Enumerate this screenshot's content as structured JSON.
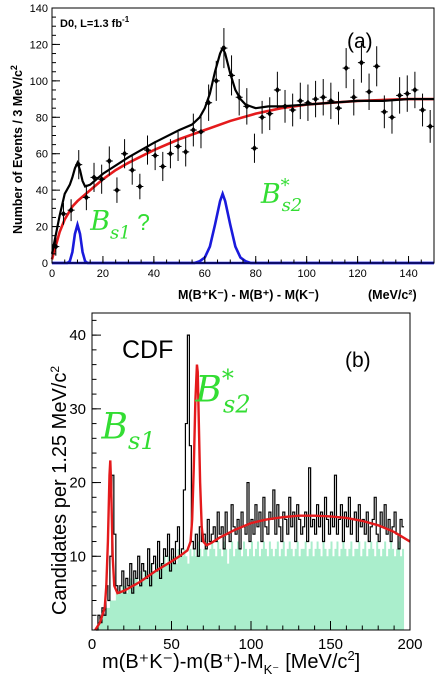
{
  "chart_data": [
    {
      "id": "a",
      "type": "scatter",
      "panel_label": "(a)",
      "note": "D0, L=1.3 fb",
      "note_sup": "-1",
      "ylabel": "Number of Events / 3 MeV/c",
      "ylabel_sup": "2",
      "xlabel": "M(B⁺K⁻) - M(B⁺) - M(K⁻)",
      "xunit": "(MeV/c²)",
      "xlim": [
        0,
        150
      ],
      "ylim": [
        0,
        140
      ],
      "xticks": [
        0,
        20,
        40,
        60,
        80,
        100,
        120,
        140
      ],
      "yticks": [
        0,
        20,
        40,
        60,
        80,
        100,
        120,
        140
      ],
      "peak_labels": [
        {
          "main": "B",
          "sub": "s1",
          "extra": " ?",
          "x": 15,
          "y": 18
        },
        {
          "main": "B",
          "sup": "*",
          "sub": "s2",
          "x": 82,
          "y": 33
        }
      ],
      "series": [
        {
          "kind": "points",
          "color": "#000000",
          "x": [
            1.5,
            4.5,
            7.5,
            10.5,
            13.5,
            16.5,
            19.5,
            22.5,
            25.5,
            28.5,
            31.5,
            34.5,
            37.5,
            40.5,
            43.5,
            46.5,
            49.5,
            52.5,
            55.5,
            58.5,
            61.5,
            64.5,
            67.5,
            70.5,
            73.5,
            76.5,
            79.5,
            82.5,
            85.5,
            88.5,
            91.5,
            94.5,
            97.5,
            100.5,
            103.5,
            106.5,
            109.5,
            112.5,
            115.5,
            118.5,
            121.5,
            124.5,
            127.5,
            130.5,
            133.5,
            136.5,
            139.5,
            142.5,
            145.5,
            148.5
          ],
          "y": [
            9,
            27,
            29,
            54,
            36,
            47,
            46,
            56,
            40,
            60,
            51,
            42,
            62,
            59,
            53,
            60,
            64,
            61,
            73,
            72,
            88,
            100,
            118,
            103,
            91,
            86,
            63,
            80,
            82,
            95,
            86,
            84,
            89,
            88,
            90,
            91,
            89,
            85,
            107,
            91,
            110,
            94,
            108,
            83,
            80,
            92,
            93,
            95,
            84,
            75
          ],
          "err": [
            5,
            6,
            6,
            8,
            7,
            8,
            8,
            8,
            7,
            8,
            8,
            7,
            8,
            8,
            8,
            8,
            8,
            8,
            9,
            9,
            10,
            11,
            11,
            11,
            10,
            10,
            8,
            9,
            9,
            10,
            9,
            9,
            10,
            10,
            10,
            10,
            10,
            9,
            11,
            10,
            11,
            10,
            11,
            9,
            9,
            10,
            10,
            10,
            9,
            9
          ]
        },
        {
          "kind": "total_fit",
          "color": "#000000",
          "x": [
            0,
            3,
            5,
            7,
            8,
            9,
            10,
            11,
            12,
            13,
            15,
            20,
            30,
            40,
            50,
            55,
            58,
            60,
            62,
            64,
            66,
            67,
            68,
            70,
            72,
            74,
            76,
            78,
            80,
            85,
            90,
            100,
            110,
            120,
            130,
            140,
            150
          ],
          "y": [
            5,
            26,
            38,
            43,
            47,
            52,
            55,
            51,
            45,
            42,
            43,
            49,
            58,
            66,
            73,
            76,
            80,
            85,
            93,
            105,
            115,
            118,
            115,
            104,
            95,
            90,
            87,
            86,
            85,
            86,
            86,
            87,
            88,
            89,
            89,
            90,
            90
          ]
        },
        {
          "kind": "background_fit",
          "color": "#e41a1c",
          "x": [
            0,
            3,
            5,
            8,
            10,
            15,
            20,
            25,
            30,
            40,
            50,
            60,
            70,
            80,
            90,
            100,
            110,
            120,
            130,
            140,
            150
          ],
          "y": [
            2,
            17,
            24,
            31,
            34,
            40,
            46,
            51,
            55,
            62,
            68,
            73,
            78,
            82,
            85,
            87,
            88,
            89,
            89.5,
            90,
            90
          ]
        },
        {
          "kind": "signal_Bs1",
          "color": "#1a1adc",
          "x": [
            0,
            6,
            7,
            8,
            9,
            10,
            11,
            12,
            13,
            14,
            20,
            50,
            150
          ],
          "y": [
            0,
            0,
            1,
            6,
            16,
            21,
            16,
            6,
            1,
            0,
            0,
            0,
            0
          ]
        },
        {
          "kind": "signal_Bs2star",
          "color": "#1a1adc",
          "x": [
            0,
            56,
            58,
            60,
            62,
            64,
            66,
            67,
            68,
            70,
            72,
            74,
            76,
            78,
            150
          ],
          "y": [
            0,
            0,
            1,
            3,
            9,
            21,
            34,
            38,
            34,
            21,
            9,
            3,
            1,
            0,
            0
          ]
        }
      ]
    },
    {
      "id": "b",
      "type": "bar",
      "panel_label": "(b)",
      "experiment": "CDF",
      "ylabel": "Candidates per 1.25 MeV/c",
      "ylabel_sup": "2",
      "xlabel": "m(B⁺K⁻)-m(B⁺)-M",
      "xlabel_sub": "K⁻",
      "xunit": "[MeV/c",
      "xunit_sup": "2",
      "xunit_end": "]",
      "xlim": [
        0,
        200
      ],
      "ylim": [
        0,
        43
      ],
      "xticks": [
        0,
        50,
        100,
        150,
        200
      ],
      "yticks": [
        10,
        20,
        30,
        40
      ],
      "peak_labels": [
        {
          "main": "B",
          "sub": "s1",
          "x": 6,
          "y": 26
        },
        {
          "main": "B",
          "sup": "*",
          "sub": "s2",
          "x": 65,
          "y": 31
        }
      ],
      "bin_width": 1.25,
      "x_start": 2.5,
      "series": [
        {
          "kind": "data_histogram",
          "color": "#000000",
          "values": [
            0,
            2,
            1,
            3,
            2,
            6,
            4,
            10,
            21,
            13,
            6,
            5,
            6,
            8,
            5,
            7,
            6,
            9,
            5,
            8,
            7,
            10,
            6,
            9,
            8,
            7,
            11,
            6,
            9,
            10,
            8,
            12,
            7,
            9,
            11,
            10,
            13,
            8,
            11,
            9,
            12,
            14,
            10,
            11,
            19,
            28,
            40,
            25,
            12,
            11,
            13,
            10,
            14,
            12,
            13,
            11,
            15,
            12,
            13,
            14,
            12,
            16,
            13,
            14,
            11,
            16,
            13,
            12,
            17,
            14,
            13,
            15,
            11,
            16,
            14,
            13,
            20,
            12,
            15,
            13,
            17,
            14,
            16,
            12,
            18,
            14,
            13,
            16,
            15,
            19,
            13,
            17,
            14,
            12,
            16,
            15,
            13,
            18,
            14,
            16,
            12,
            17,
            15,
            13,
            14,
            16,
            12,
            22,
            14,
            15,
            13,
            17,
            14,
            16,
            12,
            18,
            15,
            13,
            16,
            14,
            21,
            13,
            15,
            17,
            12,
            16,
            14,
            18,
            13,
            15,
            16,
            12,
            17,
            14,
            15,
            13,
            16,
            12,
            14,
            15,
            18,
            13,
            12,
            16,
            14,
            17,
            13,
            15,
            12,
            14,
            16,
            13,
            11,
            15,
            14
          ]
        },
        {
          "kind": "sideband_histogram",
          "color": "#aaeecc",
          "values": [
            0,
            1,
            1,
            2,
            2,
            3,
            3,
            4,
            4,
            4,
            5,
            5,
            5,
            6,
            6,
            5,
            6,
            7,
            6,
            7,
            7,
            6,
            8,
            7,
            8,
            8,
            7,
            9,
            8,
            8,
            9,
            8,
            9,
            9,
            10,
            9,
            10,
            9,
            10,
            10,
            9,
            11,
            10,
            10,
            11,
            10,
            9,
            11,
            10,
            11,
            10,
            12,
            11,
            10,
            11,
            12,
            10,
            11,
            12,
            11,
            10,
            12,
            11,
            10,
            12,
            11,
            9,
            11,
            12,
            10,
            11,
            12,
            11,
            10,
            12,
            11,
            10,
            11,
            12,
            10,
            11,
            12,
            10,
            11,
            12,
            11,
            10,
            12,
            11,
            10,
            11,
            12,
            10,
            11,
            12,
            10,
            11,
            12,
            11,
            10,
            11,
            12,
            10,
            11,
            11,
            12,
            10,
            11,
            12,
            10,
            11,
            12,
            11,
            10,
            12,
            11,
            10,
            11,
            12,
            10,
            11,
            12,
            10,
            11,
            12,
            11,
            10,
            11,
            12,
            10,
            11,
            11,
            12,
            10,
            11,
            12,
            10,
            11,
            12,
            11,
            10,
            12,
            11,
            10,
            11,
            12,
            10,
            11,
            12,
            11,
            10,
            11,
            12,
            10,
            11
          ]
        },
        {
          "kind": "fit",
          "color": "#e41a1c",
          "x": [
            2,
            5,
            8,
            9,
            10,
            11,
            11.5,
            12,
            13,
            14,
            16,
            20,
            30,
            40,
            50,
            55,
            60,
            62,
            63,
            64,
            65,
            66,
            66.5,
            67,
            68,
            69,
            70,
            72,
            75,
            80,
            90,
            100,
            110,
            120,
            130,
            140,
            150,
            160,
            170,
            180,
            190,
            200
          ],
          "y": [
            0,
            1,
            3,
            6,
            12,
            21,
            23,
            20,
            10,
            6,
            5,
            5.3,
            6.5,
            8,
            9.3,
            10,
            10.8,
            12,
            15,
            22,
            31,
            36,
            35,
            30,
            20,
            14,
            12,
            11.5,
            11.8,
            12.5,
            13.6,
            14.5,
            15,
            15.3,
            15.5,
            15.5,
            15.4,
            15.2,
            14.8,
            14.2,
            13.3,
            12
          ]
        }
      ]
    }
  ]
}
